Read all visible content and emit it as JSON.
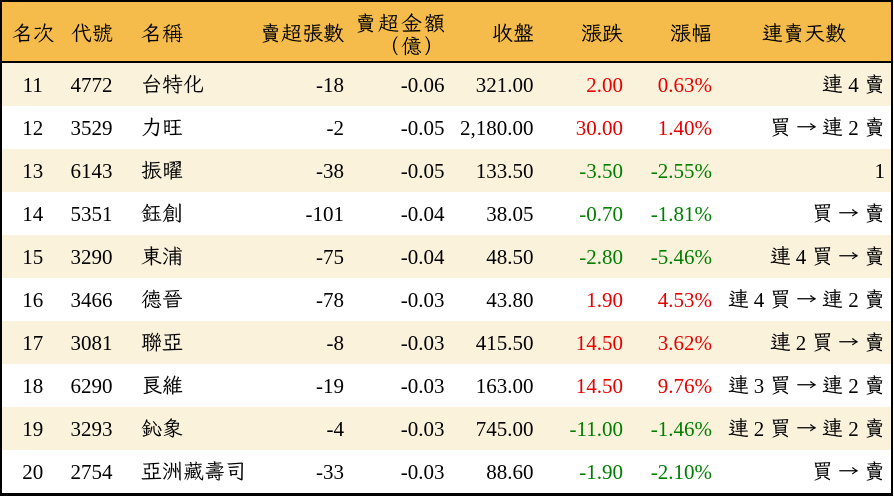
{
  "chart_data": {
    "type": "table",
    "columns": [
      {
        "id": "rank",
        "label": "名次",
        "align": "center"
      },
      {
        "id": "code",
        "label": "代號",
        "align": "center"
      },
      {
        "id": "name",
        "label": "名稱",
        "align": "left"
      },
      {
        "id": "sell_lots",
        "label": "賣超張數",
        "align": "right"
      },
      {
        "id": "sell_amount",
        "label": "賣超金額",
        "label2": "（億）",
        "align": "right"
      },
      {
        "id": "close",
        "label": "收盤",
        "align": "right"
      },
      {
        "id": "change",
        "label": "漲跌",
        "align": "right"
      },
      {
        "id": "change_pct",
        "label": "漲幅",
        "align": "right"
      },
      {
        "id": "streak",
        "label": "連賣天數",
        "align": "right"
      }
    ],
    "rows": [
      {
        "rank": "11",
        "code": "4772",
        "name": "台特化",
        "sell_lots": "-18",
        "sell_amount": "-0.06",
        "close": "321.00",
        "change": "2.00",
        "change_pct": "0.63%",
        "streak": "連 4 賣",
        "direction": "up"
      },
      {
        "rank": "12",
        "code": "3529",
        "name": "力旺",
        "sell_lots": "-2",
        "sell_amount": "-0.05",
        "close": "2,180.00",
        "change": "30.00",
        "change_pct": "1.40%",
        "streak": "買 → 連 2 賣",
        "direction": "up"
      },
      {
        "rank": "13",
        "code": "6143",
        "name": "振曜",
        "sell_lots": "-38",
        "sell_amount": "-0.05",
        "close": "133.50",
        "change": "-3.50",
        "change_pct": "-2.55%",
        "streak": "1",
        "direction": "down"
      },
      {
        "rank": "14",
        "code": "5351",
        "name": "鈺創",
        "sell_lots": "-101",
        "sell_amount": "-0.04",
        "close": "38.05",
        "change": "-0.70",
        "change_pct": "-1.81%",
        "streak": "買 → 賣",
        "direction": "down"
      },
      {
        "rank": "15",
        "code": "3290",
        "name": "東浦",
        "sell_lots": "-75",
        "sell_amount": "-0.04",
        "close": "48.50",
        "change": "-2.80",
        "change_pct": "-5.46%",
        "streak": "連 4 買 → 賣",
        "direction": "down"
      },
      {
        "rank": "16",
        "code": "3466",
        "name": "德晉",
        "sell_lots": "-78",
        "sell_amount": "-0.03",
        "close": "43.80",
        "change": "1.90",
        "change_pct": "4.53%",
        "streak": "連 4 買 → 連 2 賣",
        "direction": "up"
      },
      {
        "rank": "17",
        "code": "3081",
        "name": "聯亞",
        "sell_lots": "-8",
        "sell_amount": "-0.03",
        "close": "415.50",
        "change": "14.50",
        "change_pct": "3.62%",
        "streak": "連 2 買 → 賣",
        "direction": "up"
      },
      {
        "rank": "18",
        "code": "6290",
        "name": "良維",
        "sell_lots": "-19",
        "sell_amount": "-0.03",
        "close": "163.00",
        "change": "14.50",
        "change_pct": "9.76%",
        "streak": "連 3 買 → 連 2 賣",
        "direction": "up"
      },
      {
        "rank": "19",
        "code": "3293",
        "name": "鈊象",
        "sell_lots": "-4",
        "sell_amount": "-0.03",
        "close": "745.00",
        "change": "-11.00",
        "change_pct": "-1.46%",
        "streak": "連 2 買 → 連 2 賣",
        "direction": "down"
      },
      {
        "rank": "20",
        "code": "2754",
        "name": "亞洲藏壽司",
        "sell_lots": "-33",
        "sell_amount": "-0.03",
        "close": "88.60",
        "change": "-1.90",
        "change_pct": "-2.10%",
        "streak": "買 → 賣",
        "direction": "down"
      }
    ],
    "layout": {
      "grid": "off",
      "header_position": "top",
      "alternating_row_shading": true
    },
    "colors": {
      "header_bg": "#F5BC4B",
      "row_alt_bg": "#FBF2DC",
      "row_bg": "#FFFFFF",
      "up": "#E60000",
      "down": "#007E00",
      "text": "#000000",
      "border": "#000000"
    }
  }
}
